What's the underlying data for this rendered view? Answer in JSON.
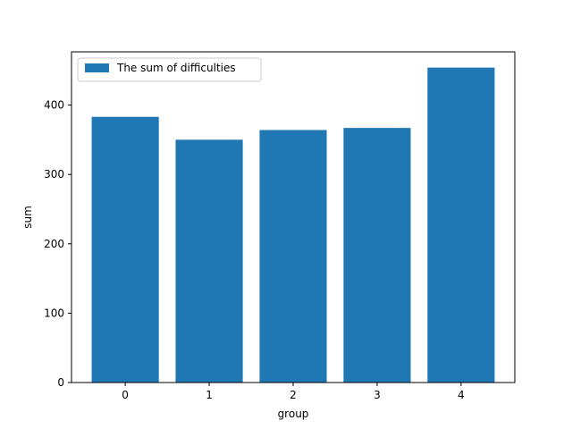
{
  "chart_data": {
    "type": "bar",
    "categories": [
      "0",
      "1",
      "2",
      "3",
      "4"
    ],
    "series": [
      {
        "name": "The sum of difficulties",
        "values": [
          383,
          350,
          364,
          367,
          454
        ],
        "color": "#1f77b4"
      }
    ],
    "xlabel": "group",
    "ylabel": "sum",
    "ylim": [
      0,
      476.7
    ],
    "yticks": [
      0,
      100,
      200,
      300,
      400
    ],
    "grid": false,
    "legend_position": "top-left"
  }
}
